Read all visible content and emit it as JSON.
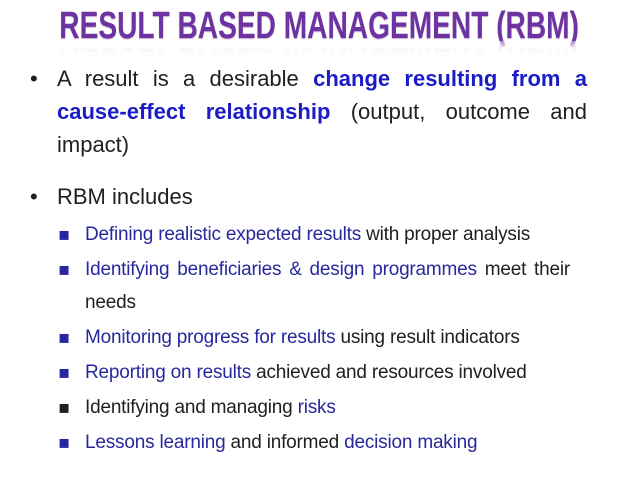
{
  "title": {
    "text": "RESULT BASED MANAGEMENT (RBM)"
  },
  "colors": {
    "title_purple": "#6c33a1",
    "bold_blue": "#1b1bc8",
    "navy_blue": "#28289e",
    "ink": "#202020",
    "background": "#ffffff"
  },
  "markers": {
    "level1_dot": "•",
    "level2_square": "▪"
  },
  "bullets": {
    "b1": {
      "seg1": "A result is a desirable ",
      "seg2": "change resulting from a cause-effect relationship",
      "seg3": " (output, outcome and impact)"
    },
    "b2": {
      "seg1": "RBM includes"
    },
    "sub1": {
      "seg1": "Defining realistic expected results",
      "seg2": " with proper analysis"
    },
    "sub2": {
      "seg1": "Identifying beneficiaries & design programmes",
      "seg2": " meet their needs"
    },
    "sub3": {
      "seg1": "Monitoring progress for results",
      "seg2": " using result indicators"
    },
    "sub4": {
      "seg1": "Reporting on results",
      "seg2": " achieved and resources involved"
    },
    "sub5": {
      "seg1": "Identifying and managing ",
      "seg2": "risks"
    },
    "sub6": {
      "seg1": "Lessons learning",
      "seg2": " and informed ",
      "seg3": "decision making"
    }
  }
}
